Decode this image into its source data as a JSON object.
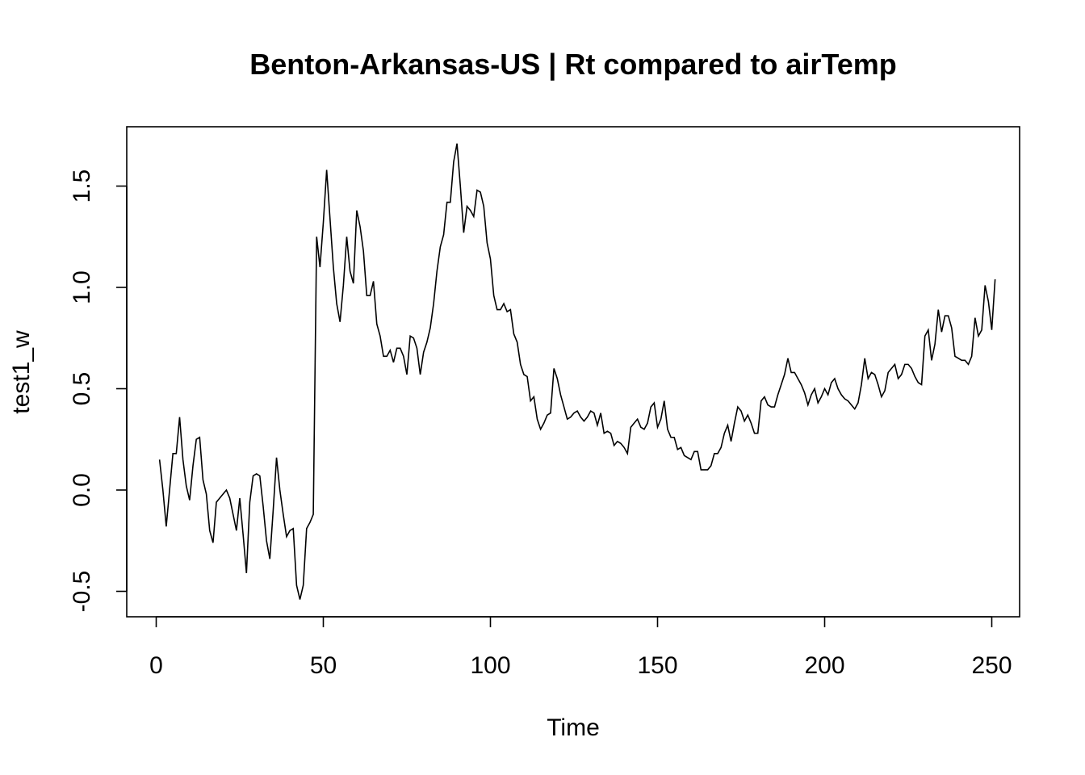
{
  "chart_data": {
    "type": "line",
    "title": "Benton-Arkansas-US | Rt compared to airTemp",
    "xlabel": "Time",
    "ylabel": "test1_w",
    "xlim": [
      0,
      250
    ],
    "ylim": [
      -0.5,
      1.5
    ],
    "xticks": [
      0,
      50,
      100,
      150,
      200,
      250
    ],
    "yticks": [
      -0.5,
      0.0,
      0.5,
      1.0,
      1.5
    ],
    "xtick_labels": [
      "0",
      "50",
      "100",
      "150",
      "200",
      "250"
    ],
    "ytick_labels": [
      "-0.5",
      "0.0",
      "0.5",
      "1.0",
      "1.5"
    ],
    "grid": false,
    "series": [
      {
        "x_start": 1,
        "x_step": 1,
        "values": [
          0.15,
          0.0,
          -0.18,
          0.0,
          0.18,
          0.18,
          0.36,
          0.15,
          0.02,
          -0.05,
          0.12,
          0.25,
          0.26,
          0.05,
          -0.02,
          -0.2,
          -0.26,
          -0.06,
          -0.04,
          -0.02,
          0.0,
          -0.04,
          -0.12,
          -0.2,
          -0.04,
          -0.22,
          -0.41,
          -0.06,
          0.07,
          0.08,
          0.07,
          -0.08,
          -0.25,
          -0.34,
          -0.1,
          0.16,
          0.0,
          -0.12,
          -0.23,
          -0.2,
          -0.19,
          -0.47,
          -0.54,
          -0.47,
          -0.19,
          -0.16,
          -0.12,
          1.25,
          1.1,
          1.32,
          1.58,
          1.34,
          1.1,
          0.92,
          0.83,
          1.01,
          1.25,
          1.08,
          1.02,
          1.38,
          1.3,
          1.18,
          0.96,
          0.96,
          1.03,
          0.82,
          0.76,
          0.66,
          0.66,
          0.69,
          0.63,
          0.7,
          0.7,
          0.66,
          0.57,
          0.76,
          0.75,
          0.7,
          0.57,
          0.68,
          0.73,
          0.8,
          0.92,
          1.08,
          1.2,
          1.26,
          1.42,
          1.42,
          1.62,
          1.71,
          1.5,
          1.27,
          1.4,
          1.38,
          1.35,
          1.48,
          1.47,
          1.4,
          1.22,
          1.14,
          0.96,
          0.89,
          0.89,
          0.92,
          0.88,
          0.89,
          0.77,
          0.73,
          0.62,
          0.57,
          0.56,
          0.44,
          0.46,
          0.35,
          0.3,
          0.33,
          0.37,
          0.38,
          0.6,
          0.55,
          0.47,
          0.41,
          0.35,
          0.36,
          0.38,
          0.39,
          0.36,
          0.34,
          0.36,
          0.39,
          0.38,
          0.32,
          0.38,
          0.28,
          0.29,
          0.28,
          0.22,
          0.24,
          0.23,
          0.21,
          0.18,
          0.31,
          0.33,
          0.35,
          0.31,
          0.3,
          0.33,
          0.41,
          0.43,
          0.31,
          0.35,
          0.44,
          0.3,
          0.26,
          0.26,
          0.2,
          0.21,
          0.17,
          0.16,
          0.15,
          0.19,
          0.19,
          0.1,
          0.1,
          0.1,
          0.12,
          0.18,
          0.18,
          0.21,
          0.28,
          0.32,
          0.24,
          0.33,
          0.41,
          0.39,
          0.34,
          0.37,
          0.33,
          0.28,
          0.28,
          0.44,
          0.46,
          0.42,
          0.41,
          0.41,
          0.47,
          0.52,
          0.57,
          0.65,
          0.58,
          0.58,
          0.55,
          0.52,
          0.48,
          0.42,
          0.47,
          0.5,
          0.43,
          0.46,
          0.5,
          0.47,
          0.53,
          0.55,
          0.5,
          0.47,
          0.45,
          0.44,
          0.42,
          0.4,
          0.43,
          0.52,
          0.65,
          0.55,
          0.58,
          0.57,
          0.52,
          0.46,
          0.49,
          0.58,
          0.6,
          0.62,
          0.55,
          0.57,
          0.62,
          0.62,
          0.6,
          0.56,
          0.53,
          0.52,
          0.76,
          0.79,
          0.64,
          0.72,
          0.89,
          0.78,
          0.86,
          0.86,
          0.8,
          0.66,
          0.65,
          0.64,
          0.64,
          0.62,
          0.66,
          0.85,
          0.76,
          0.79,
          1.01,
          0.93,
          0.79,
          1.04
        ]
      }
    ]
  }
}
